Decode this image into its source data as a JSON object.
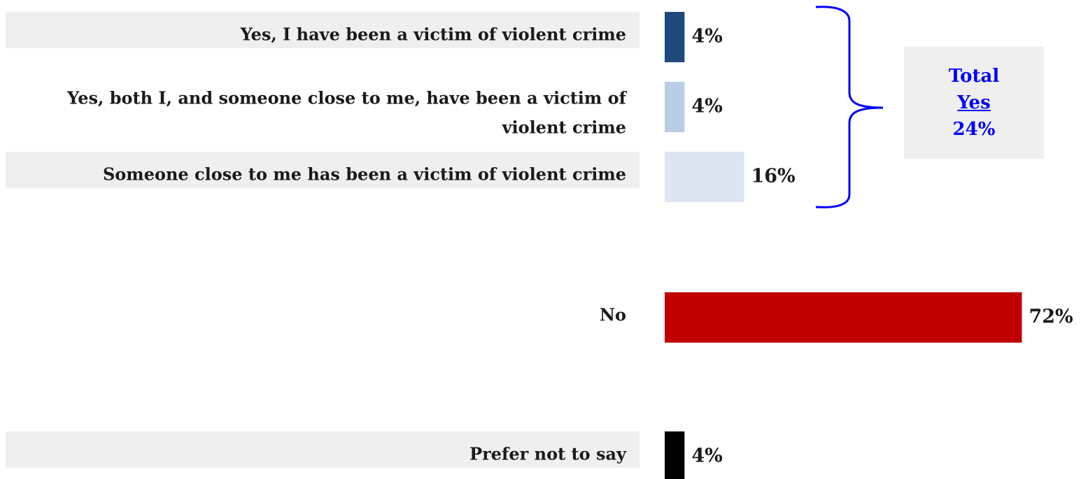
{
  "chart_data": {
    "type": "bar",
    "orientation": "horizontal",
    "categories": [
      [
        "Yes, I have been a victim of violent crime"
      ],
      [
        "Yes, both I, and someone close to me, have been a victim of",
        "violent crime"
      ],
      [
        "Someone close to me has been a victim of violent crime"
      ],
      [
        "No"
      ],
      [
        "Prefer not to say"
      ]
    ],
    "values": [
      4,
      4,
      16,
      72,
      4
    ],
    "value_labels": [
      "4%",
      "4%",
      "16%",
      "72%",
      "4%"
    ],
    "colors": [
      "#1f497d",
      "#b9cde5",
      "#dce6f2",
      "#c00000",
      "#000000"
    ],
    "label_background": [
      true,
      false,
      true,
      false,
      true
    ],
    "total_box": {
      "line1": "Total",
      "line2": "Yes",
      "line3": "24%",
      "color": "#0000ff"
    },
    "bracket_color": "#0000ff"
  }
}
